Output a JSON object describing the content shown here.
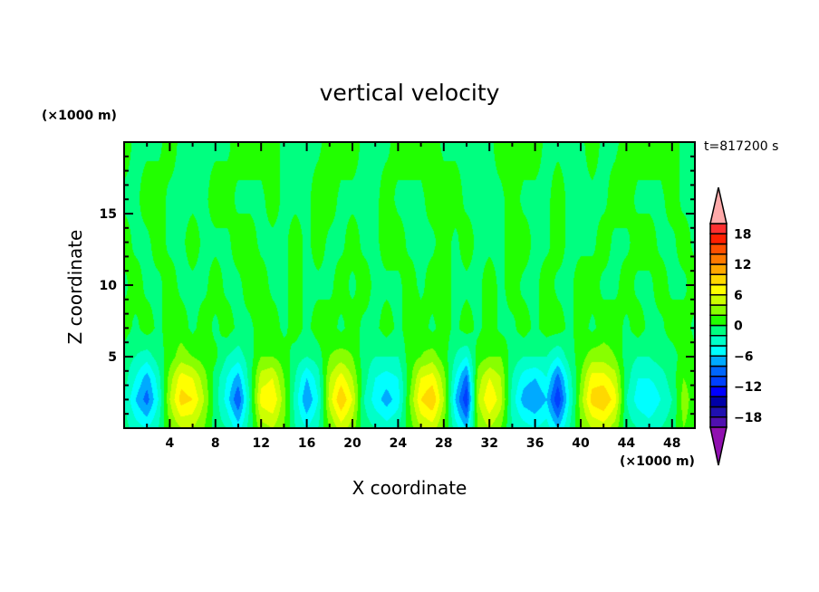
{
  "chart_data": {
    "type": "heatmap",
    "style": "filled-contour",
    "title": "vertical velocity",
    "xlabel": "X coordinate",
    "ylabel": "Z coordinate",
    "x_unit_label": "(×1000 m)",
    "z_unit_label": "(×1000 m)",
    "annotation": "t=817200 s",
    "xlim": [
      0,
      50
    ],
    "ylim": [
      0,
      20
    ],
    "x_ticks": [
      4,
      8,
      12,
      16,
      20,
      24,
      28,
      32,
      36,
      40,
      44,
      48
    ],
    "y_ticks": [
      5,
      10,
      15
    ],
    "grid": false,
    "legend": "right",
    "colorbar": {
      "levels": [
        -20,
        -18,
        -16,
        -14,
        -12,
        -10,
        -8,
        -6,
        -4,
        -2,
        0,
        2,
        4,
        6,
        8,
        10,
        12,
        14,
        16,
        18,
        20
      ],
      "tick_labels": [
        "18",
        "12",
        "6",
        "0",
        "−6",
        "−12",
        "−18"
      ],
      "tick_values": [
        18,
        12,
        6,
        0,
        -6,
        -12,
        -18
      ],
      "colors_low_to_high": [
        "#5010b0",
        "#2010b0",
        "#0000a8",
        "#0000ff",
        "#0040ff",
        "#0066ff",
        "#00aaff",
        "#00ffff",
        "#00ffc8",
        "#00ff80",
        "#22ff00",
        "#88ff00",
        "#ccff00",
        "#ffff00",
        "#ffd800",
        "#ffa800",
        "#ff7a00",
        "#ff5000",
        "#ff2000",
        "#ff3030"
      ],
      "under_color": "#9010b0",
      "over_color": "#ffaaaa"
    },
    "grid_x": [
      0,
      1,
      2,
      3,
      4,
      5,
      6,
      7,
      8,
      9,
      10,
      11,
      12,
      13,
      14,
      15,
      16,
      17,
      18,
      19,
      20,
      21,
      22,
      23,
      24,
      25,
      26,
      27,
      28,
      29,
      30,
      31,
      32,
      33,
      34,
      35,
      36,
      37,
      38,
      39,
      40,
      41,
      42,
      43,
      44,
      45,
      46,
      47,
      48,
      49,
      50
    ],
    "grid_z": [
      0,
      2,
      3.5,
      5,
      7,
      10,
      13,
      16,
      20
    ],
    "values": [
      [
        -1,
        -3,
        -4,
        -2,
        2,
        4,
        4,
        2,
        -1,
        -2,
        -5,
        -1,
        3,
        4,
        2,
        -2,
        -4,
        -2,
        2,
        5,
        3,
        -1,
        -2,
        -3,
        -2,
        1,
        4,
        5,
        2,
        -3,
        -6,
        2,
        4,
        2,
        -2,
        -3,
        -4,
        -3,
        -6,
        -2,
        2,
        4,
        5,
        3,
        -1,
        -2,
        -3,
        -2,
        -1,
        2,
        1
      ],
      [
        -2,
        -6,
        -9,
        -4,
        4,
        9,
        8,
        4,
        -1,
        -5,
        -10,
        -2,
        7,
        8,
        3,
        -3,
        -8,
        -4,
        5,
        10,
        6,
        -2,
        -5,
        -7,
        -5,
        2,
        8,
        10,
        4,
        -6,
        -12,
        4,
        8,
        5,
        -3,
        -7,
        -8,
        -6,
        -12,
        -4,
        3,
        9,
        10,
        7,
        -2,
        -5,
        -6,
        -4,
        -2,
        3,
        1
      ],
      [
        -1,
        -4,
        -7,
        -3,
        3,
        7,
        6,
        3,
        -1,
        -4,
        -7,
        -1,
        5,
        6,
        2,
        -2,
        -6,
        -3,
        4,
        7,
        4,
        -1,
        -4,
        -5,
        -4,
        1,
        6,
        7,
        3,
        -4,
        -9,
        3,
        6,
        4,
        -2,
        -5,
        -6,
        -4,
        -9,
        -3,
        2,
        7,
        7,
        5,
        -1,
        -4,
        -4,
        -3,
        -1,
        2,
        1
      ],
      [
        -1,
        -2,
        -3,
        -1,
        1,
        3,
        2,
        1,
        0.5,
        -2,
        -3,
        -1,
        2,
        2,
        1,
        -1,
        -2,
        -1,
        2,
        3,
        2,
        -1,
        -2,
        -2,
        -2,
        1,
        2,
        3,
        1,
        -2,
        -4,
        1,
        2,
        2,
        -1,
        -2,
        -2,
        -2,
        -4,
        -1,
        1,
        3,
        3,
        2,
        -1,
        -2,
        -2,
        -1,
        -1,
        1,
        0.5
      ],
      [
        1,
        -0.5,
        1,
        -0.5,
        1,
        1,
        -0.5,
        1,
        -0.5,
        1,
        -0.5,
        -0.5,
        1,
        1,
        -0.5,
        1,
        -0.5,
        1,
        1,
        -0.5,
        1,
        -0.5,
        -0.5,
        1,
        -0.5,
        1,
        1,
        -0.5,
        1,
        -0.5,
        1,
        -0.5,
        1,
        -0.5,
        -0.5,
        1,
        -0.5,
        1,
        1,
        -0.5,
        1,
        -0.5,
        1,
        1,
        -0.5,
        1,
        -0.5,
        -0.5,
        1,
        1,
        -0.5
      ],
      [
        -0.5,
        1,
        -0.5,
        -0.5,
        1,
        -0.5,
        -0.5,
        -0.5,
        1,
        -0.5,
        -0.5,
        1,
        1,
        -0.5,
        -0.5,
        1,
        -0.5,
        -0.5,
        -0.5,
        1,
        -0.5,
        1,
        -0.5,
        -0.5,
        -0.5,
        1,
        -0.5,
        1,
        1,
        -0.5,
        -0.5,
        -0.5,
        1,
        -0.5,
        1,
        -0.5,
        -0.5,
        1,
        -0.5,
        -0.5,
        1,
        1,
        -0.5,
        -0.5,
        1,
        -0.5,
        -0.5,
        1,
        -0.5,
        -0.5,
        1
      ],
      [
        1,
        -0.5,
        -0.5,
        1,
        -0.5,
        -0.5,
        1,
        -0.5,
        -0.5,
        -0.5,
        1,
        1,
        -0.5,
        -0.5,
        -0.5,
        1,
        -0.5,
        1,
        -0.5,
        -0.5,
        1,
        -0.5,
        -0.5,
        1,
        1,
        -0.5,
        -0.5,
        -0.5,
        1,
        -0.5,
        1,
        -0.5,
        -0.5,
        -0.5,
        1,
        1,
        -0.5,
        -0.5,
        1,
        -0.5,
        -0.5,
        -0.5,
        1,
        -0.5,
        -0.5,
        1,
        1,
        -0.5,
        -0.5,
        1,
        -0.5
      ],
      [
        -0.5,
        -0.5,
        1,
        1,
        -0.5,
        -0.5,
        -0.5,
        -0.5,
        1,
        1,
        -0.5,
        -0.5,
        -0.5,
        1,
        -0.5,
        -0.5,
        -0.5,
        1,
        1,
        -0.5,
        -0.5,
        -0.5,
        -0.5,
        1,
        -0.5,
        -0.5,
        -0.5,
        1,
        1,
        1,
        -0.5,
        -0.5,
        -0.5,
        -0.5,
        1,
        -0.5,
        -0.5,
        -0.5,
        1,
        -0.5,
        -0.5,
        -0.5,
        -0.5,
        1,
        1,
        -0.5,
        -0.5,
        -0.5,
        1,
        -0.5,
        -0.5
      ],
      [
        1,
        -0.5,
        -0.5,
        -0.5,
        1,
        -0.5,
        -0.5,
        -0.5,
        -0.5,
        -0.5,
        1,
        1,
        1,
        1,
        -0.5,
        -0.5,
        -0.5,
        -0.5,
        1,
        1,
        1,
        -0.5,
        -0.5,
        -0.5,
        1,
        1,
        1,
        1,
        -0.5,
        -0.5,
        -0.5,
        -0.5,
        -0.5,
        1,
        1,
        1,
        1,
        -0.5,
        -0.5,
        -0.5,
        -0.5,
        1,
        -0.5,
        -0.5,
        1,
        1,
        1,
        1,
        1,
        -0.5,
        -0.5
      ]
    ]
  }
}
